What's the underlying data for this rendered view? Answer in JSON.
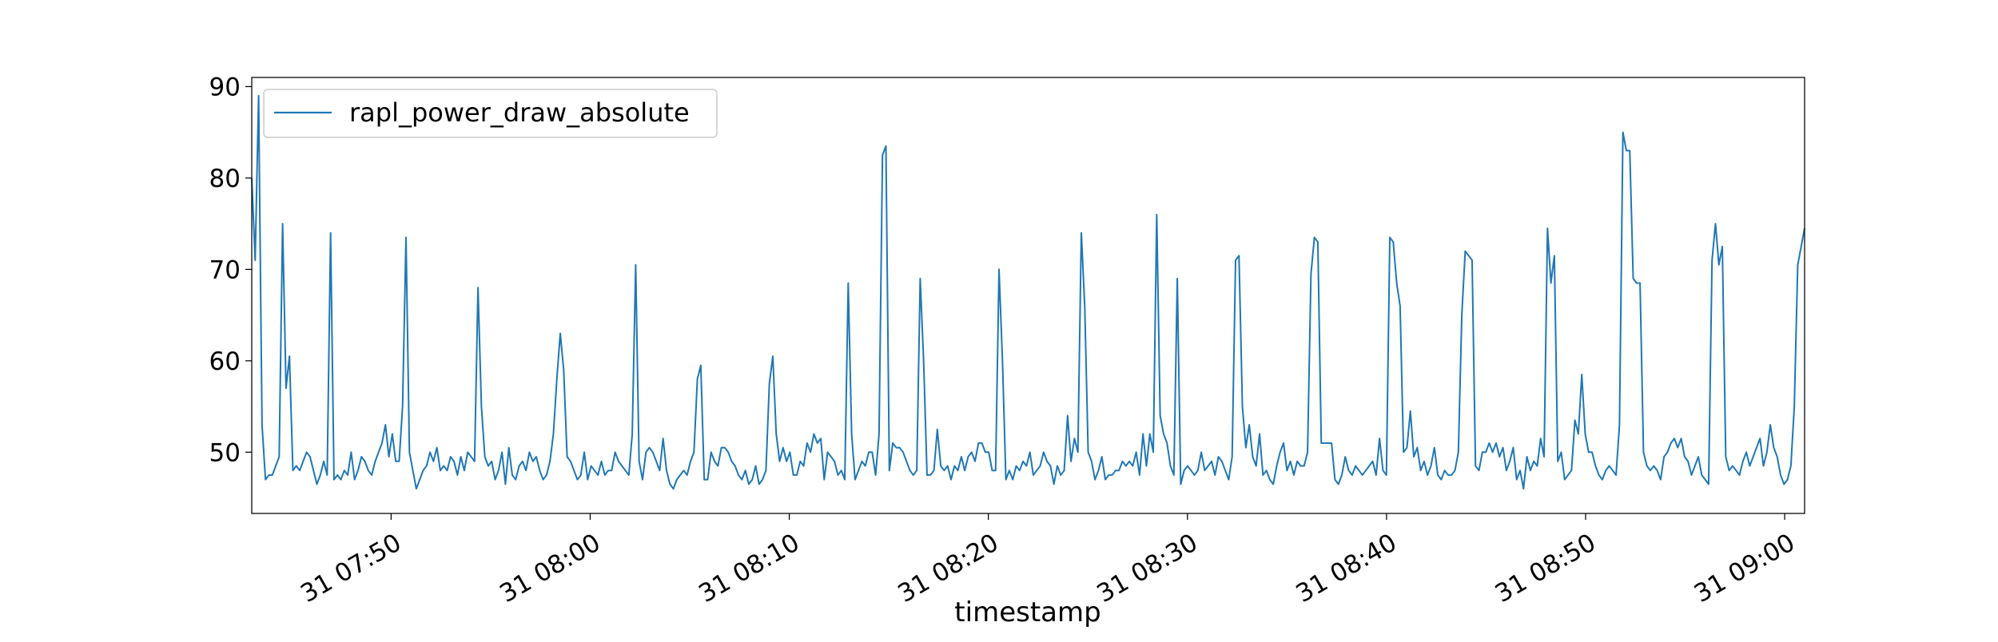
{
  "chart_data": {
    "type": "line",
    "title": "",
    "xlabel": "timestamp",
    "ylabel": "",
    "x_start": "07:43:00",
    "x_end": "09:01:00",
    "xlim": [
      "07:43",
      "09:01"
    ],
    "ylim": [
      43.3,
      91
    ],
    "x_tick_values": [
      "07:50",
      "08:00",
      "08:10",
      "08:20",
      "08:30",
      "08:40",
      "08:50",
      "09:00"
    ],
    "x_tick_labels": [
      "31 07:50",
      "31 08:00",
      "31 08:10",
      "31 08:20",
      "31 08:30",
      "31 08:40",
      "31 08:50",
      "31 09:00"
    ],
    "y_ticks": [
      50,
      60,
      70,
      80,
      90
    ],
    "grid": false,
    "legend_position": "upper-left",
    "series": [
      {
        "name": "rapl_power_draw_absolute",
        "color": "#1f77b4",
        "x_range": [
          "07:43",
          "09:01"
        ],
        "values": [
          80,
          71,
          89,
          53,
          47,
          47.5,
          47.5,
          48.5,
          49.5,
          75,
          57,
          60.5,
          48,
          48.5,
          48,
          49,
          50,
          49.5,
          48,
          46.5,
          47.5,
          49,
          47.5,
          74,
          47,
          47.5,
          47,
          48,
          47.5,
          50,
          47,
          48,
          49.5,
          49,
          48,
          47.5,
          49,
          50,
          51,
          53,
          49.5,
          52,
          49,
          49,
          55,
          73.5,
          50,
          48,
          46,
          47,
          48,
          48.5,
          50,
          49,
          50.5,
          48,
          48.5,
          48,
          49.5,
          49,
          47.5,
          49.5,
          48,
          50,
          49.5,
          49,
          68,
          55,
          49.5,
          48.5,
          49,
          47,
          48,
          50,
          46.5,
          50.5,
          47.5,
          47,
          48.5,
          49,
          48,
          50,
          49,
          49.5,
          48,
          47,
          47.5,
          49,
          52,
          58,
          63,
          59,
          49.5,
          49,
          48,
          47,
          47.5,
          50,
          47,
          48.5,
          48,
          47.5,
          49,
          47.5,
          48,
          48,
          50,
          49,
          48.5,
          48,
          47.5,
          52,
          70.5,
          49,
          47,
          50,
          50.5,
          50,
          49,
          48,
          51.5,
          48,
          46.5,
          46,
          47,
          47.5,
          48,
          47.5,
          49,
          50,
          58,
          59.5,
          47,
          47,
          50,
          49,
          48.5,
          50.5,
          50.5,
          50,
          49,
          48.5,
          47.5,
          47,
          48,
          46.5,
          47,
          48.5,
          46.5,
          47,
          48,
          57.5,
          60.5,
          52,
          49,
          50.5,
          49,
          50,
          47.5,
          47.5,
          49,
          48.5,
          51,
          50,
          52,
          51,
          51.5,
          47,
          50,
          49.5,
          49,
          47.5,
          48,
          47,
          68.5,
          52,
          47,
          48,
          49,
          48.5,
          50,
          50,
          47.5,
          52,
          82.5,
          83.5,
          48,
          51,
          50.5,
          50.5,
          50,
          49,
          48,
          47.5,
          48,
          69,
          60,
          47.5,
          47.5,
          48,
          52.5,
          48.5,
          48,
          48.5,
          47,
          48.5,
          48,
          49.5,
          48,
          49.5,
          50,
          49,
          51,
          51,
          50,
          50,
          48,
          48,
          70,
          60,
          47,
          48,
          47,
          48.5,
          48,
          49,
          48.5,
          50,
          47.5,
          48,
          48.5,
          50,
          49,
          48.5,
          46.5,
          48.5,
          47.5,
          48,
          54,
          49,
          51.5,
          50,
          74,
          66,
          50,
          49,
          47,
          48,
          49.5,
          47,
          47.5,
          47.5,
          48,
          48,
          49,
          48.5,
          49,
          48.5,
          50,
          47.5,
          52,
          48.5,
          52,
          50,
          76,
          54,
          52,
          51,
          48.5,
          47.5,
          69,
          46.5,
          48,
          48.5,
          48,
          47.5,
          48,
          50,
          48,
          48.5,
          49,
          47.5,
          49.5,
          49,
          48,
          47,
          49.5,
          71,
          71.5,
          55,
          50.5,
          53,
          49.5,
          48.5,
          52,
          47.5,
          48,
          47,
          46.5,
          48.5,
          50,
          51,
          48,
          49,
          47.5,
          49,
          48.5,
          48.5,
          50,
          69.5,
          73.5,
          73,
          51,
          51,
          51,
          51,
          47,
          46.5,
          47.5,
          49.5,
          48,
          47.5,
          48.5,
          48,
          47.5,
          48,
          48.5,
          49,
          47.5,
          51.5,
          48,
          47.5,
          73.5,
          73,
          68.5,
          66,
          50,
          50.5,
          54.5,
          49.5,
          50.5,
          48,
          49,
          47.5,
          48.5,
          50.5,
          47.5,
          47,
          48,
          47.5,
          47.5,
          48,
          50,
          65,
          72,
          71.5,
          71,
          48.5,
          48,
          50,
          50,
          51,
          50,
          51,
          49.5,
          50.5,
          48,
          49,
          50.5,
          47,
          48,
          46,
          49.5,
          48,
          49,
          48.5,
          51.5,
          49.5,
          74.5,
          68.5,
          71.5,
          49,
          50,
          47,
          47.5,
          48,
          53.5,
          52,
          58.5,
          52,
          50,
          50,
          48.5,
          47.5,
          47,
          48,
          48.5,
          48,
          47.5,
          53,
          85,
          83,
          83,
          69,
          68.5,
          68.5,
          50,
          48.5,
          48,
          48.5,
          48,
          47,
          49.5,
          50,
          51,
          51.5,
          50.5,
          51.5,
          49.5,
          49,
          47.5,
          48.5,
          49.5,
          47.5,
          47,
          46.5,
          71,
          75,
          70.5,
          72.5,
          49.5,
          48,
          48.5,
          48,
          47.5,
          49,
          50,
          48.5,
          49.5,
          50.5,
          51.5,
          48.5,
          50,
          53,
          50.5,
          49.5,
          47.5,
          46.5,
          47,
          48.5,
          55,
          70.5,
          72.5,
          74.5
        ]
      }
    ]
  }
}
